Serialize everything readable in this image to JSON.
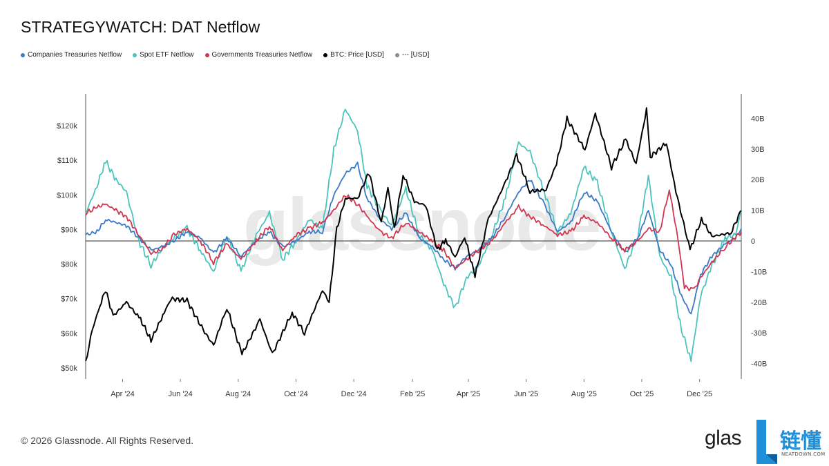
{
  "title": "STRATEGYWATCH: DAT Netflow",
  "legend": [
    {
      "label": "Companies Treasuries Netflow",
      "color": "#3a79c6"
    },
    {
      "label": "Spot ETF Netflow",
      "color": "#4cc3bd"
    },
    {
      "label": "Governments Treasuries Netflow",
      "color": "#d0364f"
    },
    {
      "label": "BTC: Price [USD]",
      "color": "#000000"
    },
    {
      "label": "--- [USD]",
      "color": "#8a8a8a"
    }
  ],
  "watermark": "glassnode",
  "footer": "© 2026 Glassnode. All Rights Reserved.",
  "logo": {
    "text": "glas",
    "badge_cn": "链懂",
    "badge_sub": "NEATDOWN.COM",
    "badge_color": "#1f8fd9"
  },
  "chart_data": {
    "type": "line",
    "x_labels": [
      "Apr '24",
      "Jun '24",
      "Aug '24",
      "Oct '24",
      "Dec '24",
      "Feb '25",
      "Apr '25",
      "Jun '25",
      "Aug '25",
      "Oct '25",
      "Dec '25"
    ],
    "y_left": {
      "ticks": [
        "$50k",
        "$60k",
        "$70k",
        "$80k",
        "$90k",
        "$100k",
        "$110k",
        "$120k"
      ],
      "range": [
        50000,
        120000
      ]
    },
    "y_right": {
      "ticks": [
        "40B",
        "30B",
        "20B",
        "10B",
        "0",
        "-10B",
        "-20B",
        "-30B",
        "-40B"
      ],
      "range": [
        -40,
        40
      ]
    },
    "x_range": [
      "2024-02-22",
      "2026-01-14"
    ],
    "series": [
      {
        "name": "Spot ETF Netflow",
        "axis": "right",
        "unit": "B USD",
        "color": "#4cc3bd",
        "points": [
          [
            "2024-02-22",
            9
          ],
          [
            "2024-03-05",
            18
          ],
          [
            "2024-03-14",
            26
          ],
          [
            "2024-03-25",
            20
          ],
          [
            "2024-04-05",
            16
          ],
          [
            "2024-04-18",
            0
          ],
          [
            "2024-05-01",
            -8
          ],
          [
            "2024-05-12",
            -3
          ],
          [
            "2024-05-25",
            1
          ],
          [
            "2024-06-08",
            4
          ],
          [
            "2024-06-22",
            -3
          ],
          [
            "2024-07-06",
            -10
          ],
          [
            "2024-07-20",
            2
          ],
          [
            "2024-08-04",
            -10
          ],
          [
            "2024-08-20",
            2
          ],
          [
            "2024-09-03",
            9
          ],
          [
            "2024-09-17",
            -6
          ],
          [
            "2024-10-01",
            0
          ],
          [
            "2024-10-15",
            7
          ],
          [
            "2024-10-29",
            4
          ],
          [
            "2024-11-10",
            30
          ],
          [
            "2024-11-22",
            43
          ],
          [
            "2024-12-05",
            36
          ],
          [
            "2024-12-15",
            18
          ],
          [
            "2024-12-29",
            10
          ],
          [
            "2025-01-10",
            5
          ],
          [
            "2025-01-25",
            17
          ],
          [
            "2025-02-08",
            2
          ],
          [
            "2025-02-22",
            -3
          ],
          [
            "2025-03-06",
            -14
          ],
          [
            "2025-03-18",
            -22
          ],
          [
            "2025-03-30",
            -12
          ],
          [
            "2025-04-12",
            -8
          ],
          [
            "2025-04-26",
            2
          ],
          [
            "2025-05-10",
            14
          ],
          [
            "2025-05-24",
            32
          ],
          [
            "2025-06-05",
            29
          ],
          [
            "2025-06-20",
            16
          ],
          [
            "2025-07-04",
            3
          ],
          [
            "2025-07-18",
            9
          ],
          [
            "2025-08-01",
            24
          ],
          [
            "2025-08-15",
            19
          ],
          [
            "2025-08-30",
            3
          ],
          [
            "2025-09-13",
            -9
          ],
          [
            "2025-09-27",
            2
          ],
          [
            "2025-10-08",
            21
          ],
          [
            "2025-10-20",
            -5
          ],
          [
            "2025-11-01",
            -12
          ],
          [
            "2025-11-12",
            -29
          ],
          [
            "2025-11-22",
            -39
          ],
          [
            "2025-12-02",
            -18
          ],
          [
            "2025-12-14",
            -8
          ],
          [
            "2025-12-28",
            1
          ],
          [
            "2026-01-08",
            2
          ],
          [
            "2026-01-14",
            10
          ]
        ]
      },
      {
        "name": "Companies Treasuries Netflow",
        "axis": "right",
        "unit": "B USD",
        "color": "#3a79c6",
        "points": [
          [
            "2024-02-22",
            2
          ],
          [
            "2024-03-05",
            3
          ],
          [
            "2024-03-14",
            7
          ],
          [
            "2024-03-25",
            6
          ],
          [
            "2024-04-05",
            5
          ],
          [
            "2024-04-18",
            1
          ],
          [
            "2024-05-01",
            -3
          ],
          [
            "2024-05-12",
            -2
          ],
          [
            "2024-05-25",
            0
          ],
          [
            "2024-06-08",
            3
          ],
          [
            "2024-06-22",
            1
          ],
          [
            "2024-07-06",
            -4
          ],
          [
            "2024-07-20",
            1
          ],
          [
            "2024-08-04",
            -5
          ],
          [
            "2024-08-20",
            0
          ],
          [
            "2024-09-03",
            3
          ],
          [
            "2024-09-17",
            -2
          ],
          [
            "2024-10-01",
            0
          ],
          [
            "2024-10-15",
            3
          ],
          [
            "2024-10-29",
            3
          ],
          [
            "2024-11-10",
            15
          ],
          [
            "2024-11-22",
            22
          ],
          [
            "2024-12-05",
            25
          ],
          [
            "2024-12-15",
            14
          ],
          [
            "2024-12-29",
            7
          ],
          [
            "2025-01-10",
            4
          ],
          [
            "2025-01-25",
            9
          ],
          [
            "2025-02-08",
            1
          ],
          [
            "2025-02-22",
            -2
          ],
          [
            "2025-03-06",
            -6
          ],
          [
            "2025-03-18",
            -9
          ],
          [
            "2025-03-30",
            -5
          ],
          [
            "2025-04-12",
            -3
          ],
          [
            "2025-04-26",
            1
          ],
          [
            "2025-05-10",
            8
          ],
          [
            "2025-05-24",
            16
          ],
          [
            "2025-06-05",
            20
          ],
          [
            "2025-06-20",
            12
          ],
          [
            "2025-07-04",
            3
          ],
          [
            "2025-07-18",
            6
          ],
          [
            "2025-08-01",
            16
          ],
          [
            "2025-08-15",
            13
          ],
          [
            "2025-08-30",
            3
          ],
          [
            "2025-09-13",
            -4
          ],
          [
            "2025-09-27",
            1
          ],
          [
            "2025-10-08",
            10
          ],
          [
            "2025-10-20",
            -3
          ],
          [
            "2025-11-01",
            -8
          ],
          [
            "2025-11-12",
            -18
          ],
          [
            "2025-11-22",
            -24
          ],
          [
            "2025-12-02",
            -11
          ],
          [
            "2025-12-14",
            -5
          ],
          [
            "2025-12-28",
            -1
          ],
          [
            "2026-01-08",
            1
          ],
          [
            "2026-01-14",
            4
          ]
        ]
      },
      {
        "name": "Governments Treasuries Netflow",
        "axis": "right",
        "unit": "B USD",
        "color": "#d0364f",
        "points": [
          [
            "2024-02-22",
            9
          ],
          [
            "2024-03-05",
            11
          ],
          [
            "2024-03-14",
            12
          ],
          [
            "2024-03-25",
            10
          ],
          [
            "2024-04-05",
            8
          ],
          [
            "2024-04-18",
            2
          ],
          [
            "2024-05-01",
            -4
          ],
          [
            "2024-05-12",
            -3
          ],
          [
            "2024-05-25",
            2
          ],
          [
            "2024-06-08",
            4
          ],
          [
            "2024-06-22",
            0
          ],
          [
            "2024-07-06",
            -7
          ],
          [
            "2024-07-20",
            -1
          ],
          [
            "2024-08-04",
            -6
          ],
          [
            "2024-08-20",
            0
          ],
          [
            "2024-09-03",
            5
          ],
          [
            "2024-09-17",
            -3
          ],
          [
            "2024-10-01",
            2
          ],
          [
            "2024-10-15",
            4
          ],
          [
            "2024-10-29",
            6
          ],
          [
            "2024-11-10",
            10
          ],
          [
            "2024-11-22",
            15
          ],
          [
            "2024-12-05",
            12
          ],
          [
            "2024-12-15",
            8
          ],
          [
            "2024-12-29",
            3
          ],
          [
            "2025-01-10",
            1
          ],
          [
            "2025-01-25",
            6
          ],
          [
            "2025-02-08",
            3
          ],
          [
            "2025-02-22",
            0
          ],
          [
            "2025-03-06",
            -3
          ],
          [
            "2025-03-18",
            -9
          ],
          [
            "2025-03-30",
            -6
          ],
          [
            "2025-04-12",
            -3
          ],
          [
            "2025-04-26",
            0
          ],
          [
            "2025-05-10",
            6
          ],
          [
            "2025-05-24",
            11
          ],
          [
            "2025-06-05",
            8
          ],
          [
            "2025-06-20",
            5
          ],
          [
            "2025-07-04",
            2
          ],
          [
            "2025-07-18",
            3
          ],
          [
            "2025-08-01",
            8
          ],
          [
            "2025-08-15",
            6
          ],
          [
            "2025-08-30",
            1
          ],
          [
            "2025-09-13",
            -3
          ],
          [
            "2025-09-27",
            0
          ],
          [
            "2025-10-08",
            4
          ],
          [
            "2025-10-20",
            3
          ],
          [
            "2025-10-30",
            17
          ],
          [
            "2025-11-08",
            1
          ],
          [
            "2025-11-15",
            -15
          ],
          [
            "2025-11-25",
            -16
          ],
          [
            "2025-12-02",
            -12
          ],
          [
            "2025-12-14",
            -7
          ],
          [
            "2025-12-28",
            -2
          ],
          [
            "2026-01-14",
            3
          ]
        ]
      },
      {
        "name": "BTC: Price [USD]",
        "axis": "left",
        "unit": "USD",
        "color": "#000000",
        "points": [
          [
            "2024-02-22",
            51500
          ],
          [
            "2024-02-29",
            61000
          ],
          [
            "2024-03-08",
            68000
          ],
          [
            "2024-03-14",
            72500
          ],
          [
            "2024-03-22",
            65000
          ],
          [
            "2024-04-05",
            69000
          ],
          [
            "2024-04-20",
            64000
          ],
          [
            "2024-05-01",
            58000
          ],
          [
            "2024-05-15",
            66000
          ],
          [
            "2024-05-22",
            70000
          ],
          [
            "2024-06-08",
            69500
          ],
          [
            "2024-06-25",
            61000
          ],
          [
            "2024-07-06",
            56500
          ],
          [
            "2024-07-20",
            67500
          ],
          [
            "2024-08-05",
            54000
          ],
          [
            "2024-08-24",
            64000
          ],
          [
            "2024-09-06",
            54000
          ],
          [
            "2024-09-27",
            66000
          ],
          [
            "2024-10-10",
            60000
          ],
          [
            "2024-10-29",
            72500
          ],
          [
            "2024-11-05",
            69000
          ],
          [
            "2024-11-13",
            90000
          ],
          [
            "2024-11-22",
            99000
          ],
          [
            "2024-12-05",
            99000
          ],
          [
            "2024-12-17",
            106500
          ],
          [
            "2024-12-30",
            92000
          ],
          [
            "2025-01-06",
            102000
          ],
          [
            "2025-01-13",
            90000
          ],
          [
            "2025-01-22",
            106000
          ],
          [
            "2025-02-03",
            98000
          ],
          [
            "2025-02-15",
            97000
          ],
          [
            "2025-02-27",
            84000
          ],
          [
            "2025-03-08",
            87000
          ],
          [
            "2025-03-18",
            82000
          ],
          [
            "2025-03-28",
            88000
          ],
          [
            "2025-04-08",
            76500
          ],
          [
            "2025-04-22",
            93000
          ],
          [
            "2025-05-09",
            103000
          ],
          [
            "2025-05-22",
            111500
          ],
          [
            "2025-06-05",
            101000
          ],
          [
            "2025-06-22",
            101500
          ],
          [
            "2025-07-03",
            109000
          ],
          [
            "2025-07-14",
            122000
          ],
          [
            "2025-08-02",
            113000
          ],
          [
            "2025-08-13",
            123500
          ],
          [
            "2025-08-30",
            108000
          ],
          [
            "2025-09-14",
            116000
          ],
          [
            "2025-09-25",
            109000
          ],
          [
            "2025-10-06",
            124500
          ],
          [
            "2025-10-10",
            111000
          ],
          [
            "2025-10-27",
            115000
          ],
          [
            "2025-11-06",
            101000
          ],
          [
            "2025-11-21",
            84000
          ],
          [
            "2025-12-03",
            93000
          ],
          [
            "2025-12-14",
            88000
          ],
          [
            "2026-01-03",
            89000
          ],
          [
            "2026-01-14",
            95500
          ]
        ]
      }
    ]
  }
}
